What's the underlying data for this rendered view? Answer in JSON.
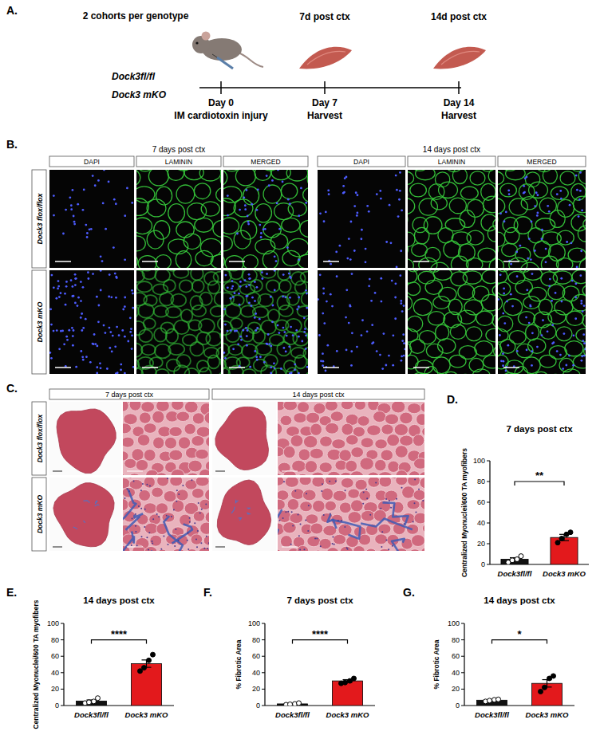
{
  "panel_labels": [
    "A.",
    "B.",
    "C.",
    "D.",
    "E.",
    "F.",
    "G."
  ],
  "panel_a": {
    "cohort_note": "2 cohorts per genotype",
    "genotypes": [
      "Dock3fl/fl",
      "Dock3 mKO"
    ],
    "headers": [
      "7d post ctx",
      "14d post ctx"
    ],
    "days": [
      "Day 0",
      "Day 7",
      "Day 14"
    ],
    "events": [
      "IM cardiotoxin injury",
      "Harvest",
      "Harvest"
    ]
  },
  "panel_b": {
    "timepoints": [
      "7 days post ctx",
      "14 days post ctx"
    ],
    "channels": [
      "DAPI",
      "LAMININ",
      "MERGED"
    ],
    "genotypes": [
      "Dock3 flox/flox",
      "Dock3 mKO"
    ]
  },
  "panel_c": {
    "timepoints": [
      "7 days post ctx",
      "14 days post ctx"
    ],
    "genotypes": [
      "Dock3 flox/flox",
      "Dock3 mKO"
    ]
  },
  "chart_data": [
    {
      "type": "bar",
      "title": "7 days post ctx",
      "ylabel": "Centralized Myonuclei/600 TA myofibers",
      "categories": [
        "Dock3fl/fl",
        "Dock3 mKO"
      ],
      "values": [
        5,
        26
      ],
      "errors": [
        1.5,
        3
      ],
      "points": [
        [
          2,
          4,
          5,
          8
        ],
        [
          21,
          25,
          29,
          31
        ]
      ],
      "colors": [
        "#111111",
        "#e3191c"
      ],
      "ylim": [
        0,
        100
      ],
      "yticks": [
        0,
        20,
        40,
        60,
        80,
        100
      ],
      "annotations": [
        "**"
      ]
    },
    {
      "type": "bar",
      "title": "14 days post ctx",
      "ylabel": "Centralized Myonuclei/600 TA myofibers",
      "categories": [
        "Dock3fl/fl",
        "Dock3 mKO"
      ],
      "values": [
        5.5,
        51
      ],
      "errors": [
        1.3,
        4.5
      ],
      "points": [
        [
          3,
          4,
          5,
          9
        ],
        [
          42,
          46,
          55,
          62
        ]
      ],
      "colors": [
        "#111111",
        "#e3191c"
      ],
      "ylim": [
        0,
        100
      ],
      "yticks": [
        0,
        20,
        40,
        60,
        80,
        100
      ],
      "annotations": [
        "****"
      ]
    },
    {
      "type": "bar",
      "title": "7 days post ctx",
      "ylabel": "% Fibrotic Area",
      "categories": [
        "Dock3fl/fl",
        "Dock3 mKO"
      ],
      "values": [
        2,
        30
      ],
      "errors": [
        0.5,
        1.5
      ],
      "points": [
        [
          1,
          1.5,
          2,
          3
        ],
        [
          27,
          28,
          30,
          33
        ]
      ],
      "colors": [
        "#111111",
        "#e3191c"
      ],
      "ylim": [
        0,
        100
      ],
      "yticks": [
        0,
        20,
        40,
        60,
        80,
        100
      ],
      "annotations": [
        "****"
      ]
    },
    {
      "type": "bar",
      "title": "14 days post ctx",
      "ylabel": "% Fibrotic Area",
      "categories": [
        "Dock3fl/fl",
        "Dock3 mKO"
      ],
      "values": [
        6.5,
        27
      ],
      "errors": [
        0.6,
        4.5
      ],
      "points": [
        [
          5,
          6,
          7,
          7.5
        ],
        [
          17,
          22,
          33,
          36
        ]
      ],
      "colors": [
        "#111111",
        "#e3191c"
      ],
      "ylim": [
        0,
        100
      ],
      "yticks": [
        0,
        20,
        40,
        60,
        80,
        100
      ],
      "annotations": [
        "*"
      ]
    }
  ]
}
